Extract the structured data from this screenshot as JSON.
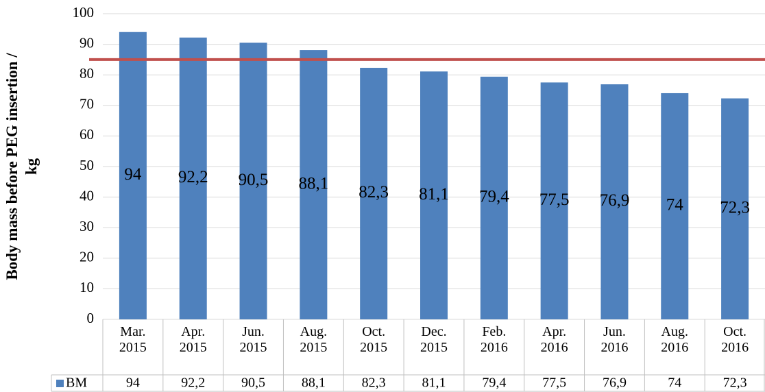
{
  "chart_data": {
    "type": "bar",
    "y_label": "Body mass before PEG insertion / kg",
    "categories": [
      "Mar. 2015",
      "Apr. 2015",
      "Jun. 2015",
      "Aug. 2015",
      "Oct. 2015",
      "Dec. 2015",
      "Feb. 2016",
      "Apr. 2016",
      "Jun. 2016",
      "Aug. 2016",
      "Oct. 2016"
    ],
    "series": [
      {
        "name": "BM",
        "color": "#4f81bd",
        "values": [
          94,
          92.2,
          90.5,
          88.1,
          82.3,
          81.1,
          79.4,
          77.5,
          76.9,
          74,
          72.3
        ],
        "value_labels": [
          "94",
          "92,2",
          "90,5",
          "88,1",
          "82,3",
          "81,1",
          "79,4",
          "77,5",
          "76,9",
          "74",
          "72,3"
        ]
      }
    ],
    "reference_line": {
      "value": 85,
      "color": "#c0504d"
    },
    "ylim": [
      0,
      100
    ],
    "yticks": [
      0,
      10,
      20,
      30,
      40,
      50,
      60,
      70,
      80,
      90,
      100
    ],
    "grid": true,
    "data_table": true
  }
}
